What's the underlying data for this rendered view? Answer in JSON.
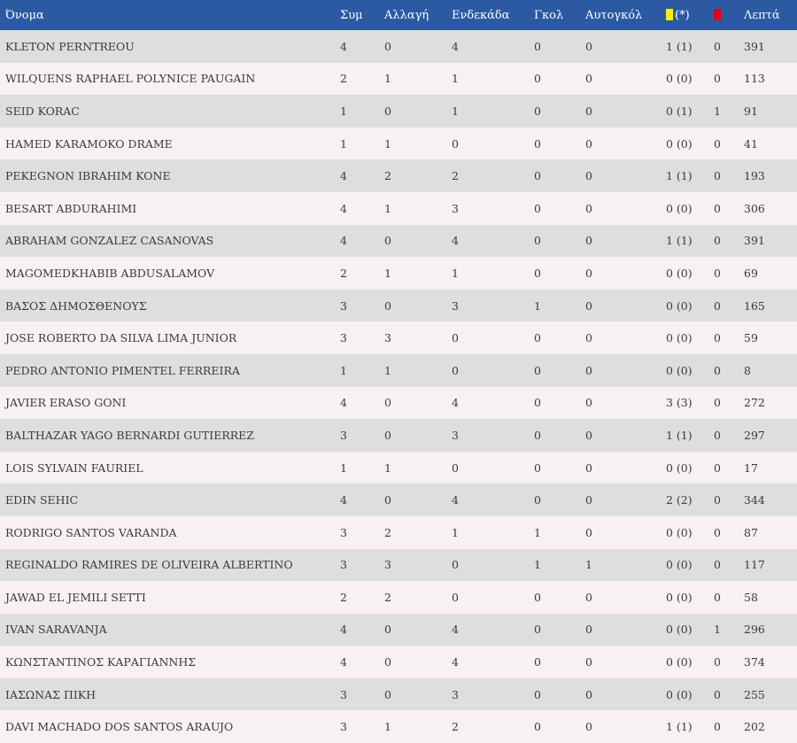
{
  "colors": {
    "header_bg": "#2b5aa3",
    "row_odd": "#dedede",
    "row_even": "#f8f1f1",
    "yellow_card": "#ffee00",
    "red_card": "#e0001a"
  },
  "columns": {
    "name": "Όνομα",
    "apps": "Συμ",
    "subs": "Αλλαγή",
    "starts": "Ενδεκάδα",
    "goals": "Γκολ",
    "own_goals": "Αυτογκόλ",
    "yellow_suffix": "(*)",
    "yellow_icon": "yellow-card-icon",
    "red_icon": "red-card-icon",
    "minutes": "Λεπτά"
  },
  "players": [
    {
      "name": "KLETON PERNTREOU",
      "apps": "4",
      "subs": "0",
      "starts": "4",
      "goals": "0",
      "own_goals": "0",
      "yellow": "1 (1)",
      "red": "0",
      "minutes": "391"
    },
    {
      "name": "WILQUENS RAPHAEL POLYNICE PAUGAIN",
      "apps": "2",
      "subs": "1",
      "starts": "1",
      "goals": "0",
      "own_goals": "0",
      "yellow": "0 (0)",
      "red": "0",
      "minutes": "113"
    },
    {
      "name": "SEID KORAC",
      "apps": "1",
      "subs": "0",
      "starts": "1",
      "goals": "0",
      "own_goals": "0",
      "yellow": "0 (1)",
      "red": "1",
      "minutes": "91"
    },
    {
      "name": "HAMED KARAMOKO DRAME",
      "apps": "1",
      "subs": "1",
      "starts": "0",
      "goals": "0",
      "own_goals": "0",
      "yellow": "0 (0)",
      "red": "0",
      "minutes": "41"
    },
    {
      "name": "PEKEGNON IBRAHIM KONE",
      "apps": "4",
      "subs": "2",
      "starts": "2",
      "goals": "0",
      "own_goals": "0",
      "yellow": "1 (1)",
      "red": "0",
      "minutes": "193"
    },
    {
      "name": "BESART ABDURAHIMI",
      "apps": "4",
      "subs": "1",
      "starts": "3",
      "goals": "0",
      "own_goals": "0",
      "yellow": "0 (0)",
      "red": "0",
      "minutes": "306"
    },
    {
      "name": "ABRAHAM GONZALEZ CASANOVAS",
      "apps": "4",
      "subs": "0",
      "starts": "4",
      "goals": "0",
      "own_goals": "0",
      "yellow": "1 (1)",
      "red": "0",
      "minutes": "391"
    },
    {
      "name": "MAGOMEDKHABIB ABDUSALAMOV",
      "apps": "2",
      "subs": "1",
      "starts": "1",
      "goals": "0",
      "own_goals": "0",
      "yellow": "0 (0)",
      "red": "0",
      "minutes": "69"
    },
    {
      "name": "ΒΑΣΟΣ ΔΗΜΟΣΘΕΝΟΥΣ",
      "apps": "3",
      "subs": "0",
      "starts": "3",
      "goals": "1",
      "own_goals": "0",
      "yellow": "0 (0)",
      "red": "0",
      "minutes": "165"
    },
    {
      "name": "JOSE ROBERTO DA SILVA LIMA JUNIOR",
      "apps": "3",
      "subs": "3",
      "starts": "0",
      "goals": "0",
      "own_goals": "0",
      "yellow": "0 (0)",
      "red": "0",
      "minutes": "59"
    },
    {
      "name": "PEDRO ANTONIO PIMENTEL FERREIRA",
      "apps": "1",
      "subs": "1",
      "starts": "0",
      "goals": "0",
      "own_goals": "0",
      "yellow": "0 (0)",
      "red": "0",
      "minutes": "8"
    },
    {
      "name": "JAVIER ERASO GONI",
      "apps": "4",
      "subs": "0",
      "starts": "4",
      "goals": "0",
      "own_goals": "0",
      "yellow": "3 (3)",
      "red": "0",
      "minutes": "272"
    },
    {
      "name": "BALTHAZAR YAGO BERNARDI GUTIERREZ",
      "apps": "3",
      "subs": "0",
      "starts": "3",
      "goals": "0",
      "own_goals": "0",
      "yellow": "1 (1)",
      "red": "0",
      "minutes": "297"
    },
    {
      "name": "LOIS SYLVAIN FAURIEL",
      "apps": "1",
      "subs": "1",
      "starts": "0",
      "goals": "0",
      "own_goals": "0",
      "yellow": "0 (0)",
      "red": "0",
      "minutes": "17"
    },
    {
      "name": "EDIN SEHIC",
      "apps": "4",
      "subs": "0",
      "starts": "4",
      "goals": "0",
      "own_goals": "0",
      "yellow": "2 (2)",
      "red": "0",
      "minutes": "344"
    },
    {
      "name": "RODRIGO SANTOS VARANDA",
      "apps": "3",
      "subs": "2",
      "starts": "1",
      "goals": "1",
      "own_goals": "0",
      "yellow": "0 (0)",
      "red": "0",
      "minutes": "87"
    },
    {
      "name": "REGINALDO RAMIRES DE OLIVEIRA ALBERTINO",
      "apps": "3",
      "subs": "3",
      "starts": "0",
      "goals": "1",
      "own_goals": "1",
      "yellow": "0 (0)",
      "red": "0",
      "minutes": "117"
    },
    {
      "name": "JAWAD EL JEMILI SETTI",
      "apps": "2",
      "subs": "2",
      "starts": "0",
      "goals": "0",
      "own_goals": "0",
      "yellow": "0 (0)",
      "red": "0",
      "minutes": "58"
    },
    {
      "name": "IVAN SARAVANJA",
      "apps": "4",
      "subs": "0",
      "starts": "4",
      "goals": "0",
      "own_goals": "0",
      "yellow": "0 (0)",
      "red": "1",
      "minutes": "296"
    },
    {
      "name": "ΚΩΝΣΤΑΝΤΙΝΟΣ ΚΑΡΑΓΙΑΝΝΗΣ",
      "apps": "4",
      "subs": "0",
      "starts": "4",
      "goals": "0",
      "own_goals": "0",
      "yellow": "0 (0)",
      "red": "0",
      "minutes": "374"
    },
    {
      "name": "ΙΑΣΩΝΑΣ ΠΙΚΗ",
      "apps": "3",
      "subs": "0",
      "starts": "3",
      "goals": "0",
      "own_goals": "0",
      "yellow": "0 (0)",
      "red": "0",
      "minutes": "255"
    },
    {
      "name": "DAVI MACHADO DOS SANTOS ARAUJO",
      "apps": "3",
      "subs": "1",
      "starts": "2",
      "goals": "0",
      "own_goals": "0",
      "yellow": "1 (1)",
      "red": "0",
      "minutes": "202"
    }
  ]
}
